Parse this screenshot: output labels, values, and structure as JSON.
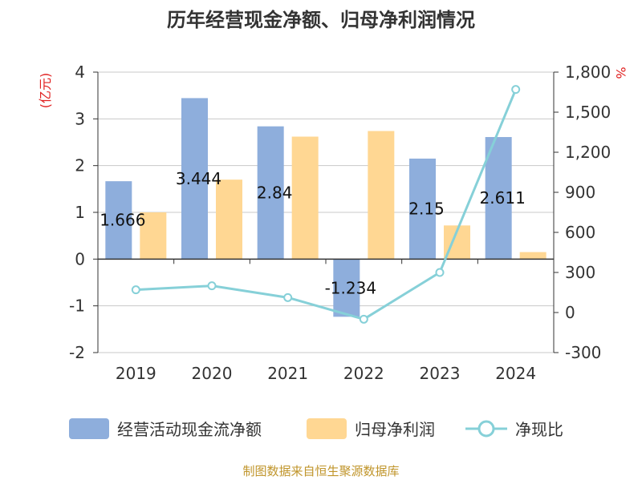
{
  "colors": {
    "bar_cash": "#8eaedc",
    "bar_profit": "#ffd793",
    "line_ratio": "#86d0d8",
    "axis": "#333333",
    "grid": "#c8c8c8",
    "unit": "#e02020",
    "source": "#c0952b"
  },
  "chart_data": {
    "type": "bar",
    "title": "历年经营现金净额、归母净利润情况",
    "categories": [
      "2019",
      "2020",
      "2021",
      "2022",
      "2023",
      "2024"
    ],
    "series": [
      {
        "name": "经营活动现金流净额",
        "type": "bar",
        "axis": "left",
        "values": [
          1.666,
          3.444,
          2.84,
          -1.234,
          2.15,
          2.611
        ],
        "labels": [
          "1.666",
          "3.444",
          "2.84",
          "-1.234",
          "2.15",
          "2.611"
        ]
      },
      {
        "name": "归母净利润",
        "type": "bar",
        "axis": "left",
        "values": [
          1.0,
          1.7,
          2.62,
          2.74,
          0.72,
          0.15
        ]
      },
      {
        "name": "净现比",
        "type": "line",
        "axis": "right",
        "values": [
          170,
          200,
          112,
          -50,
          300,
          1670
        ]
      }
    ],
    "y_left": {
      "unit": "(亿元)",
      "range": [
        -2,
        4
      ],
      "ticks": [
        4,
        3,
        2,
        1,
        0,
        -1,
        -2
      ],
      "tick_labels": [
        "4",
        "3",
        "2",
        "1",
        "0",
        "-1",
        "-2"
      ]
    },
    "y_right": {
      "unit": "%",
      "range": [
        -300,
        1800
      ],
      "ticks": [
        1800,
        1500,
        1200,
        900,
        600,
        300,
        0,
        -300
      ],
      "tick_labels": [
        "1,800",
        "1,500",
        "1,200",
        "900",
        "600",
        "300",
        "0",
        "-300"
      ]
    },
    "grid": true,
    "legend": "bottom",
    "source": "制图数据来自恒生聚源数据库"
  }
}
